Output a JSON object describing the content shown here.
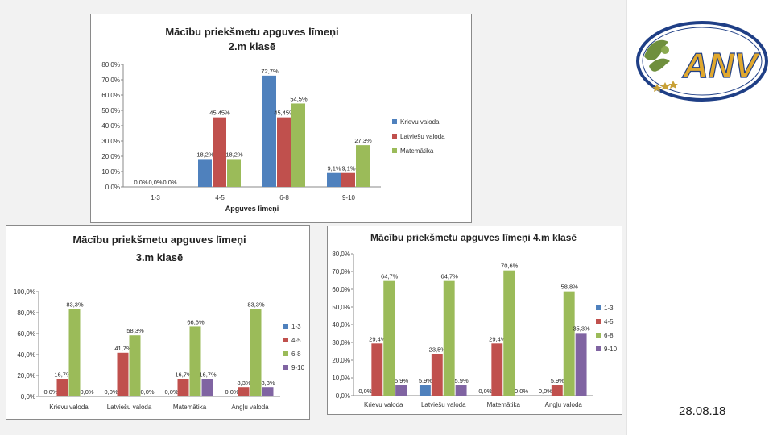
{
  "slide": {
    "date": "28.08.18"
  },
  "logo": {
    "text": "ANV"
  },
  "colors": {
    "series1": "#4f81bd",
    "series2": "#c0504d",
    "series3": "#9bbb59",
    "series4": "#8064a2"
  },
  "chart_data": [
    {
      "id": "c2",
      "type": "bar",
      "title": [
        "Mācību priekšmetu apguves līmeņi",
        "2.m klasē"
      ],
      "xlabel": "Apguves līmeņi",
      "ylabel": "",
      "categories": [
        "1-3",
        "4-5",
        "6-8",
        "9-10"
      ],
      "ylim": [
        0,
        80
      ],
      "yticks": [
        "0,0%",
        "10,0%",
        "20,0%",
        "30,0%",
        "40,0%",
        "50,0%",
        "60,0%",
        "70,0%",
        "80,0%"
      ],
      "series": [
        {
          "name": "Krievu valoda",
          "values": [
            0,
            18.2,
            72.7,
            9.1
          ],
          "labels": [
            "0,0%",
            "18,2%",
            "72,7%",
            "9,1%"
          ]
        },
        {
          "name": "Latviešu valoda",
          "values": [
            0,
            45.45,
            45.45,
            9.1
          ],
          "labels": [
            "0,0%",
            "45,45%",
            "45,45%",
            "9,1%"
          ]
        },
        {
          "name": "Matemātika",
          "values": [
            0,
            18.2,
            54.5,
            27.3
          ],
          "labels": [
            "0,0%",
            "18,2%",
            "54,5%",
            "27,3%"
          ]
        }
      ],
      "legend": "right"
    },
    {
      "id": "c3",
      "type": "bar",
      "title": [
        "Mācību priekšmetu apguves līmeņi",
        "3.m klasē"
      ],
      "xlabel": "",
      "ylabel": "",
      "categories": [
        "Krievu valoda",
        "Latviešu valoda",
        "Matemātika",
        "Angļu valoda"
      ],
      "ylim": [
        0,
        100
      ],
      "yticks": [
        "0,0%",
        "20,0%",
        "40,0%",
        "60,0%",
        "80,0%",
        "100,0%"
      ],
      "series": [
        {
          "name": "1-3",
          "values": [
            0,
            0,
            0,
            0
          ],
          "labels": [
            "0,0%",
            "0,0%",
            "0,0%",
            "0,0%"
          ]
        },
        {
          "name": "4-5",
          "values": [
            16.7,
            41.7,
            16.7,
            8.3
          ],
          "labels": [
            "16,7%",
            "41,7%",
            "16,7%",
            "8,3%"
          ]
        },
        {
          "name": "6-8",
          "values": [
            83.3,
            58.3,
            66.6,
            83.3
          ],
          "labels": [
            "83,3%",
            "58,3%",
            "66,6%",
            "83,3%"
          ]
        },
        {
          "name": "9-10",
          "values": [
            0,
            0,
            16.7,
            8.3
          ],
          "labels": [
            "0,0%",
            "0,0%",
            "16,7%",
            "8,3%"
          ]
        }
      ],
      "legend": "right"
    },
    {
      "id": "c4",
      "type": "bar",
      "title": [
        "Mācību priekšmetu apguves līmeņi 4.m klasē"
      ],
      "xlabel": "",
      "ylabel": "",
      "categories": [
        "Krievu valoda",
        "Latviešu valoda",
        "Matemātika",
        "Angļu valoda"
      ],
      "ylim": [
        0,
        80
      ],
      "yticks": [
        "0,0%",
        "10,0%",
        "20,0%",
        "30,0%",
        "40,0%",
        "50,0%",
        "60,0%",
        "70,0%",
        "80,0%"
      ],
      "series": [
        {
          "name": "1-3",
          "values": [
            0,
            5.9,
            0,
            0
          ],
          "labels": [
            "0,0%",
            "5,9%",
            "0,0%",
            "0,0%"
          ]
        },
        {
          "name": "4-5",
          "values": [
            29.4,
            23.5,
            29.4,
            5.9
          ],
          "labels": [
            "29,4%",
            "23,5%",
            "29,4%",
            "5,9%"
          ]
        },
        {
          "name": "6-8",
          "values": [
            64.7,
            64.7,
            70.6,
            58.8
          ],
          "labels": [
            "64,7%",
            "64,7%",
            "70,6%",
            "58,8%"
          ]
        },
        {
          "name": "9-10",
          "values": [
            5.9,
            5.9,
            0,
            35.3
          ],
          "labels": [
            "5,9%",
            "5,9%",
            "0,0%",
            "35,3%"
          ]
        }
      ],
      "legend": "right"
    }
  ]
}
